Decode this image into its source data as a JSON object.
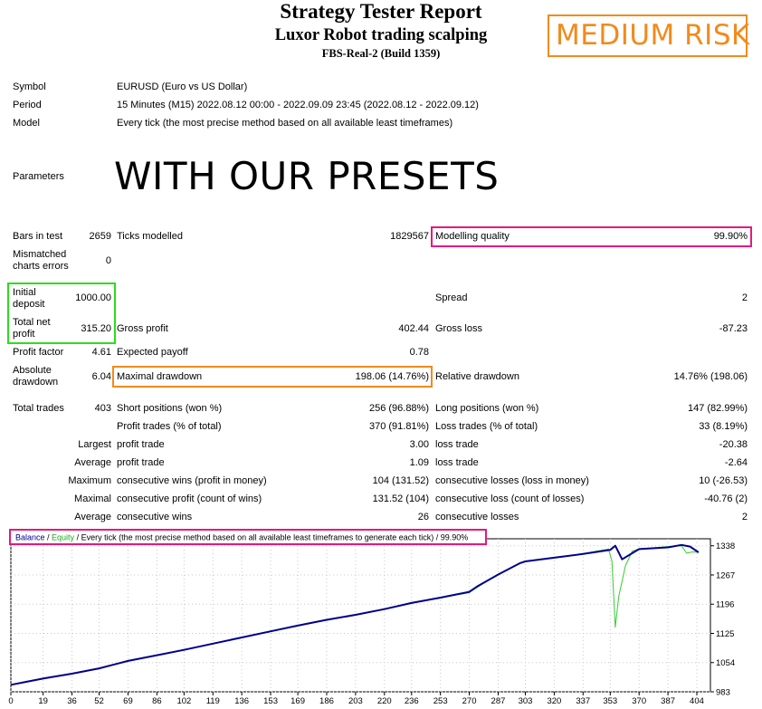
{
  "header": {
    "title": "Strategy Tester Report",
    "subtitle": "Luxor Robot trading scalping",
    "server": "FBS-Real-2 (Build 1359)",
    "risk_badge": "MEDIUM RISK"
  },
  "info": {
    "symbol_label": "Symbol",
    "symbol_value": "EURUSD (Euro vs US Dollar)",
    "period_label": "Period",
    "period_value": "15 Minutes (M15) 2022.08.12 00:00 - 2022.09.09 23:45 (2022.08.12 - 2022.09.12)",
    "model_label": "Model",
    "model_value": "Every tick (the most precise method based on all available least timeframes)",
    "parameters_label": "Parameters",
    "parameters_overlay": "WITH OUR PRESETS"
  },
  "stats": {
    "bars_label": "Bars in test",
    "bars_value": "2659",
    "ticks_label": "Ticks modelled",
    "ticks_value": "1829567",
    "quality_label": "Modelling quality",
    "quality_value": "99.90%",
    "mismatch_label_1": "Mismatched",
    "mismatch_label_2": "charts errors",
    "mismatch_value": "0",
    "deposit_label_1": "Initial",
    "deposit_label_2": "deposit",
    "deposit_value": "1000.00",
    "spread_label": "Spread",
    "spread_value": "2",
    "netprofit_label_1": "Total net",
    "netprofit_label_2": "profit",
    "netprofit_value": "315.20",
    "grossprofit_label": "Gross profit",
    "grossprofit_value": "402.44",
    "grossloss_label": "Gross loss",
    "grossloss_value": "-87.23",
    "pf_label": "Profit factor",
    "pf_value": "4.61",
    "payoff_label": "Expected payoff",
    "payoff_value": "0.78",
    "absdd_label_1": "Absolute",
    "absdd_label_2": "drawdown",
    "absdd_value": "6.04",
    "maxdd_label": "Maximal drawdown",
    "maxdd_value": "198.06 (14.76%)",
    "reldd_label": "Relative drawdown",
    "reldd_value": "14.76% (198.06)",
    "trades_label": "Total trades",
    "trades_value": "403",
    "short_label": "Short positions (won %)",
    "short_value": "256 (96.88%)",
    "long_label": "Long positions (won %)",
    "long_value": "147 (82.99%)",
    "ptrades_label": "Profit trades (% of total)",
    "ptrades_value": "370 (91.81%)",
    "ltrades_label": "Loss trades (% of total)",
    "ltrades_value": "33 (8.19%)",
    "largest_label": "Largest",
    "largest_profit_label": "profit trade",
    "largest_profit_value": "3.00",
    "largest_loss_label": "loss trade",
    "largest_loss_value": "-20.38",
    "average_label": "Average",
    "average_profit_label": "profit trade",
    "average_profit_value": "1.09",
    "average_loss_label": "loss trade",
    "average_loss_value": "-2.64",
    "maximum_label": "Maximum",
    "max_wins_label": "consecutive wins (profit in money)",
    "max_wins_value": "104 (131.52)",
    "max_losses_label": "consecutive losses (loss in money)",
    "max_losses_value": "10 (-26.53)",
    "maximal_label": "Maximal",
    "maximal_profit_label": "consecutive profit (count of wins)",
    "maximal_profit_value": "131.52 (104)",
    "maximal_loss_label": "consecutive loss (count of losses)",
    "maximal_loss_value": "-40.76 (2)",
    "avg2_label": "Average",
    "avg_wins_label": "consecutive wins",
    "avg_wins_value": "26",
    "avg_losses_label": "consecutive losses",
    "avg_losses_value": "2"
  },
  "chart_legend": {
    "balance": "Balance",
    "sep": " / ",
    "equity": "Equity",
    "rest": " / Every tick (the most precise method based on all available least timeframes to generate each tick)",
    "sep2": " / ",
    "quality": "99.90%"
  },
  "colors": {
    "orange_box": "#f28a1b",
    "green_box": "#2ddc1e",
    "magenta_box": "#e6197c",
    "balance_line": "#00008b",
    "equity_line": "#32cd32"
  },
  "chart_data": {
    "type": "line",
    "x_ticks": [
      0,
      19,
      36,
      52,
      69,
      86,
      102,
      119,
      136,
      153,
      169,
      186,
      203,
      220,
      236,
      253,
      270,
      287,
      303,
      320,
      337,
      353,
      370,
      387,
      404
    ],
    "y_ticks": [
      983,
      1054,
      1125,
      1196,
      1267,
      1338
    ],
    "xlim": [
      0,
      412
    ],
    "ylim": [
      983,
      1355
    ],
    "series": [
      {
        "name": "Balance",
        "color": "#00008b",
        "x": [
          0,
          10,
          20,
          36,
          52,
          69,
          86,
          102,
          119,
          136,
          153,
          169,
          186,
          203,
          220,
          236,
          253,
          270,
          275,
          287,
          300,
          303,
          320,
          337,
          353,
          356,
          360,
          370,
          387,
          395,
          400,
          405
        ],
        "y": [
          1000,
          1008,
          1016,
          1027,
          1040,
          1058,
          1072,
          1085,
          1100,
          1115,
          1130,
          1144,
          1158,
          1170,
          1184,
          1199,
          1212,
          1226,
          1240,
          1268,
          1296,
          1300,
          1309,
          1318,
          1328,
          1338,
          1305,
          1330,
          1334,
          1340,
          1336,
          1322
        ]
      },
      {
        "name": "Equity",
        "color": "#32cd32",
        "x": [
          0,
          10,
          20,
          36,
          52,
          69,
          86,
          102,
          119,
          136,
          153,
          169,
          186,
          203,
          220,
          236,
          253,
          270,
          275,
          287,
          300,
          303,
          320,
          337,
          352,
          354,
          356,
          358,
          362,
          366,
          370,
          387,
          395,
          398,
          400,
          402,
          405
        ],
        "y": [
          1000,
          1009,
          1015,
          1028,
          1039,
          1059,
          1071,
          1086,
          1099,
          1116,
          1129,
          1145,
          1157,
          1171,
          1183,
          1200,
          1211,
          1224,
          1238,
          1269,
          1295,
          1301,
          1308,
          1319,
          1330,
          1300,
          1140,
          1215,
          1290,
          1325,
          1330,
          1336,
          1338,
          1320,
          1322,
          1323,
          1322
        ]
      }
    ]
  }
}
